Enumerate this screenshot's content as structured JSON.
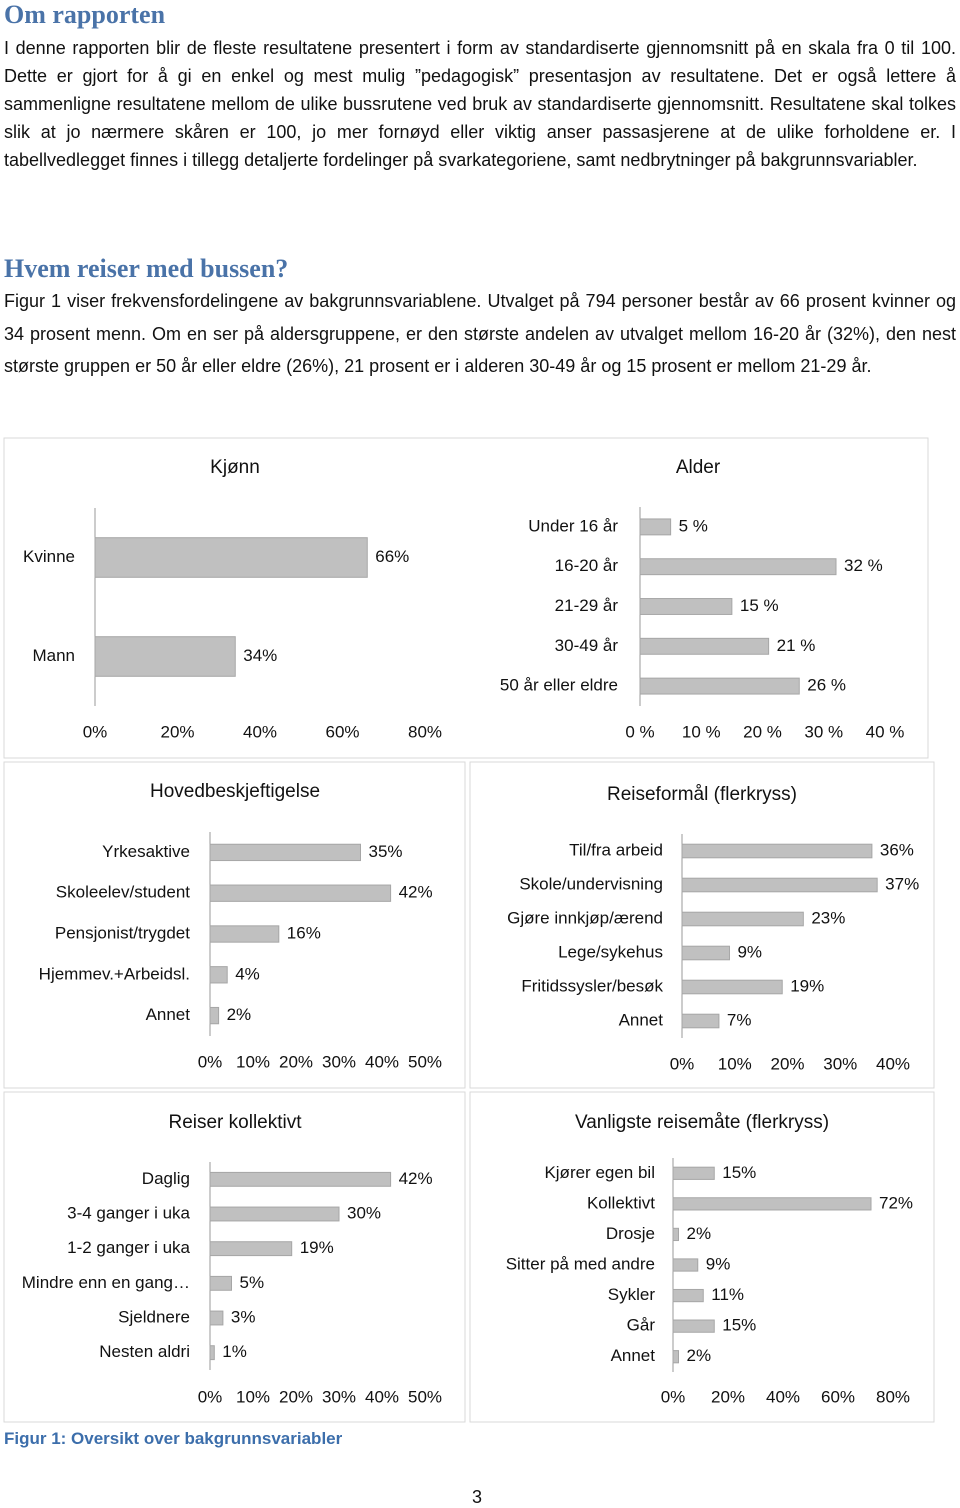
{
  "heading1": "Om rapporten",
  "para1": "I denne rapporten blir de fleste resultatene presentert i form av standardiserte gjennomsnitt på en skala fra 0 til 100. Dette er gjort for å gi en enkel og mest mulig ”pedagogisk” presentasjon av resultatene. Det er også lettere å sammenligne resultatene mellom de ulike bussrutene ved bruk av standardiserte gjennomsnitt. Resultatene skal tolkes slik at jo nærmere skåren er 100, jo mer fornøyd eller viktig anser passasjerene at de ulike forholdene er. I tabellvedlegget finnes i tillegg detaljerte fordelinger på svarkategoriene, samt nedbrytninger på bakgrunnsvariabler.",
  "heading2": "Hvem reiser med bussen?",
  "para2": "Figur 1 viser frekvensfordelingene av bakgrunnsvariablene. Utvalget på 794 personer består av 66 prosent kvinner og 34 prosent menn. Om en ser på aldersgruppene, er den største andelen av utvalget mellom 16-20 år (32%), den nest største gruppen er 50 år eller eldre (26%), 21 prosent er i alderen 30-49 år og 15 prosent er mellom 21-29 år.",
  "chart_data": [
    {
      "type": "hbar",
      "title": "Kjønn",
      "color": "#c0c0c0",
      "categories": [
        "Kvinne",
        "Mann"
      ],
      "values": [
        66,
        34
      ],
      "value_labels": [
        "66%",
        "34%"
      ],
      "xlim": [
        0,
        80
      ],
      "xticks": [
        {
          "value": 0,
          "label": "0%"
        },
        {
          "value": 20,
          "label": "20%"
        },
        {
          "value": 40,
          "label": "40%"
        },
        {
          "value": 60,
          "label": "60%"
        },
        {
          "value": 80,
          "label": "80%"
        }
      ]
    },
    {
      "type": "hbar",
      "title": "Alder",
      "color": "#c0c0c0",
      "categories": [
        "Under 16 år",
        "16-20 år",
        "21-29 år",
        "30-49 år",
        "50 år eller eldre"
      ],
      "values": [
        5,
        32,
        15,
        21,
        26
      ],
      "value_labels": [
        "5 %",
        "32 %",
        "15 %",
        "21 %",
        "26 %"
      ],
      "xlim": [
        0,
        40
      ],
      "xticks": [
        {
          "value": 0,
          "label": "0 %"
        },
        {
          "value": 10,
          "label": "10 %"
        },
        {
          "value": 20,
          "label": "20 %"
        },
        {
          "value": 30,
          "label": "30 %"
        },
        {
          "value": 40,
          "label": "40 %"
        }
      ]
    },
    {
      "type": "hbar",
      "title": "Hovedbeskjeftigelse",
      "color": "#c0c0c0",
      "categories": [
        "Yrkesaktive",
        "Skoleelev/student",
        "Pensjonist/trygdet",
        "Hjemmev.+Arbeidsl.",
        "Annet"
      ],
      "values": [
        35,
        42,
        16,
        4,
        2
      ],
      "value_labels": [
        "35%",
        "42%",
        "16%",
        "4%",
        "2%"
      ],
      "xlim": [
        0,
        50
      ],
      "xticks": [
        {
          "value": 0,
          "label": "0%"
        },
        {
          "value": 10,
          "label": "10%"
        },
        {
          "value": 20,
          "label": "20%"
        },
        {
          "value": 30,
          "label": "30%"
        },
        {
          "value": 40,
          "label": "40%"
        },
        {
          "value": 50,
          "label": "50%"
        }
      ]
    },
    {
      "type": "hbar",
      "title": "Reiseformål (flerkryss)",
      "color": "#c0c0c0",
      "categories": [
        "Til/fra arbeid",
        "Skole/undervisning",
        "Gjøre innkjøp/ærend",
        "Lege/sykehus",
        "Fritidssysler/besøk",
        "Annet"
      ],
      "values": [
        36,
        37,
        23,
        9,
        19,
        7
      ],
      "value_labels": [
        "36%",
        "37%",
        "23%",
        "9%",
        "19%",
        "7%"
      ],
      "xlim": [
        0,
        40
      ],
      "xticks": [
        {
          "value": 0,
          "label": "0%"
        },
        {
          "value": 10,
          "label": "10%"
        },
        {
          "value": 20,
          "label": "20%"
        },
        {
          "value": 30,
          "label": "30%"
        },
        {
          "value": 40,
          "label": "40%"
        }
      ]
    },
    {
      "type": "hbar",
      "title": "Reiser kollektivt",
      "color": "#c0c0c0",
      "categories": [
        "Daglig",
        "3-4 ganger i uka",
        "1-2 ganger i uka",
        "Mindre enn en gang…",
        "Sjeldnere",
        "Nesten aldri"
      ],
      "values": [
        42,
        30,
        19,
        5,
        3,
        1
      ],
      "value_labels": [
        "42%",
        "30%",
        "19%",
        "5%",
        "3%",
        "1%"
      ],
      "xlim": [
        0,
        50
      ],
      "xticks": [
        {
          "value": 0,
          "label": "0%"
        },
        {
          "value": 10,
          "label": "10%"
        },
        {
          "value": 20,
          "label": "20%"
        },
        {
          "value": 30,
          "label": "30%"
        },
        {
          "value": 40,
          "label": "40%"
        },
        {
          "value": 50,
          "label": "50%"
        }
      ]
    },
    {
      "type": "hbar",
      "title": "Vanligste reisemåte (flerkryss)",
      "color": "#c0c0c0",
      "categories": [
        "Kjører egen bil",
        "Kollektivt",
        "Drosje",
        "Sitter på med andre",
        "Sykler",
        "Går",
        "Annet"
      ],
      "values": [
        15,
        72,
        2,
        9,
        11,
        15,
        2
      ],
      "value_labels": [
        "15%",
        "72%",
        "2%",
        "9%",
        "11%",
        "15%",
        "2%"
      ],
      "xlim": [
        0,
        80
      ],
      "xticks": [
        {
          "value": 0,
          "label": "0%"
        },
        {
          "value": 20,
          "label": "20%"
        },
        {
          "value": 40,
          "label": "40%"
        },
        {
          "value": 60,
          "label": "60%"
        },
        {
          "value": 80,
          "label": "80%"
        }
      ]
    }
  ],
  "caption": "Figur 1: Oversikt over bakgrunnsvariabler",
  "page_number": "3"
}
